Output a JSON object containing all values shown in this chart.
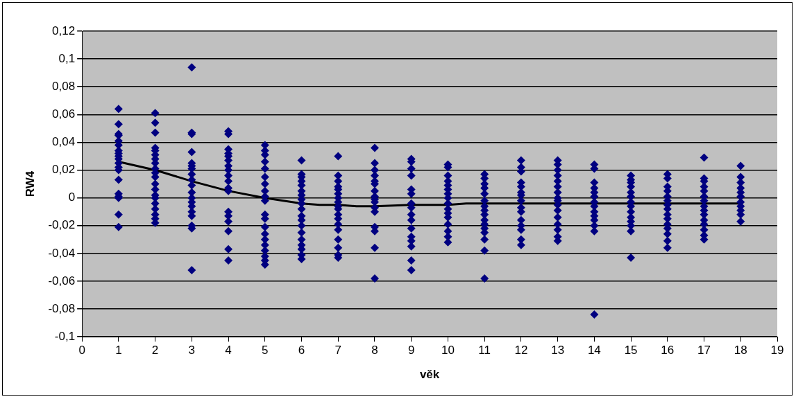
{
  "chart_data": {
    "type": "scatter",
    "xlabel": "věk",
    "ylabel": "RW4",
    "xlim": [
      0,
      19
    ],
    "xticks": [
      0,
      1,
      2,
      3,
      4,
      5,
      6,
      7,
      8,
      9,
      10,
      11,
      12,
      13,
      14,
      15,
      16,
      17,
      18,
      19
    ],
    "ylim": [
      -0.1,
      0.12
    ],
    "yticks": [
      {
        "value": -0.1,
        "label": "-0,1"
      },
      {
        "value": -0.08,
        "label": "-0,08"
      },
      {
        "value": -0.06,
        "label": "-0,06"
      },
      {
        "value": -0.04,
        "label": "-0,04"
      },
      {
        "value": -0.02,
        "label": "-0,02"
      },
      {
        "value": 0,
        "label": "0"
      },
      {
        "value": 0.02,
        "label": "0,02"
      },
      {
        "value": 0.04,
        "label": "0,04"
      },
      {
        "value": 0.06,
        "label": "0,06"
      },
      {
        "value": 0.08,
        "label": "0,08"
      },
      {
        "value": 0.1,
        "label": "0,1"
      },
      {
        "value": 0.12,
        "label": "0,12"
      }
    ],
    "grid": "y",
    "legend": false,
    "marker": "diamond",
    "series": [
      {
        "color": "#000080",
        "x": [
          1,
          1,
          1,
          1,
          1,
          1,
          1,
          1,
          1,
          1,
          1,
          1,
          1,
          1,
          1,
          1,
          1,
          1,
          1
        ],
        "values": [
          0.064,
          0.053,
          0.046,
          0.045,
          0.041,
          0.038,
          0.034,
          0.032,
          0.03,
          0.028,
          0.025,
          0.022,
          0.02,
          0.013,
          0.003,
          0.001,
          0,
          -0.012,
          -0.021
        ]
      },
      {
        "color": "#000080",
        "x": [
          2,
          2,
          2,
          2,
          2,
          2,
          2,
          2,
          2,
          2,
          2,
          2,
          2,
          2,
          2,
          2,
          2,
          2,
          2,
          2
        ],
        "values": [
          0.061,
          0.054,
          0.047,
          0.036,
          0.034,
          0.031,
          0.028,
          0.025,
          0.021,
          0.018,
          0.015,
          0.01,
          0.006,
          0.002,
          0,
          -0.004,
          -0.008,
          -0.012,
          -0.015,
          -0.018
        ]
      },
      {
        "color": "#000080",
        "x": [
          3,
          3,
          3,
          3,
          3,
          3,
          3,
          3,
          3,
          3,
          3,
          3,
          3,
          3,
          3,
          3,
          3,
          3,
          3
        ],
        "values": [
          0.094,
          0.047,
          0.046,
          0.033,
          0.025,
          0.023,
          0.021,
          0.017,
          0.013,
          0.009,
          0.004,
          0,
          -0.003,
          -0.006,
          -0.01,
          -0.013,
          -0.02,
          -0.022,
          -0.052
        ]
      },
      {
        "color": "#000080",
        "x": [
          4,
          4,
          4,
          4,
          4,
          4,
          4,
          4,
          4,
          4,
          4,
          4,
          4,
          4,
          4,
          4,
          4,
          4
        ],
        "values": [
          0.048,
          0.046,
          0.035,
          0.032,
          0.03,
          0.027,
          0.023,
          0.02,
          0.016,
          0.012,
          0.007,
          0.005,
          -0.01,
          -0.013,
          -0.017,
          -0.024,
          -0.037,
          -0.045
        ]
      },
      {
        "color": "#000080",
        "x": [
          5,
          5,
          5,
          5,
          5,
          5,
          5,
          5,
          5,
          5,
          5,
          5,
          5,
          5,
          5,
          5,
          5,
          5,
          5,
          5
        ],
        "values": [
          0.038,
          0.034,
          0.031,
          0.026,
          0.021,
          0.015,
          0.01,
          0.005,
          0.001,
          -0.002,
          -0.012,
          -0.015,
          -0.021,
          -0.026,
          -0.03,
          -0.034,
          -0.038,
          -0.042,
          -0.045,
          -0.048
        ]
      },
      {
        "color": "#000080",
        "x": [
          6,
          6,
          6,
          6,
          6,
          6,
          6,
          6,
          6,
          6,
          6,
          6,
          6,
          6,
          6,
          6,
          6,
          6,
          6
        ],
        "values": [
          0.027,
          0.017,
          0.015,
          0.012,
          0.009,
          0.005,
          0.002,
          -0.001,
          -0.004,
          -0.008,
          -0.013,
          -0.016,
          -0.02,
          -0.025,
          -0.03,
          -0.034,
          -0.037,
          -0.041,
          -0.044
        ]
      },
      {
        "color": "#000080",
        "x": [
          7,
          7,
          7,
          7,
          7,
          7,
          7,
          7,
          7,
          7,
          7,
          7,
          7,
          7,
          7,
          7,
          7,
          7
        ],
        "values": [
          0.03,
          0.016,
          0.012,
          0.008,
          0.006,
          0.003,
          0,
          -0.003,
          -0.006,
          -0.008,
          -0.012,
          -0.015,
          -0.019,
          -0.023,
          -0.03,
          -0.036,
          -0.041,
          -0.043
        ]
      },
      {
        "color": "#000080",
        "x": [
          8,
          8,
          8,
          8,
          8,
          8,
          8,
          8,
          8,
          8,
          8,
          8,
          8,
          8,
          8,
          8
        ],
        "values": [
          0.036,
          0.025,
          0.02,
          0.016,
          0.012,
          0.01,
          0.005,
          0.001,
          -0.001,
          -0.003,
          -0.007,
          -0.01,
          -0.021,
          -0.024,
          -0.036,
          -0.058
        ]
      },
      {
        "color": "#000080",
        "x": [
          9,
          9,
          9,
          9,
          9,
          9,
          9,
          9,
          9,
          9,
          9,
          9,
          9,
          9,
          9,
          9
        ],
        "values": [
          0.028,
          0.026,
          0.021,
          0.016,
          0.006,
          0.003,
          -0.004,
          -0.007,
          -0.012,
          -0.016,
          -0.022,
          -0.028,
          -0.031,
          -0.035,
          -0.045,
          -0.052
        ]
      },
      {
        "color": "#000080",
        "x": [
          10,
          10,
          10,
          10,
          10,
          10,
          10,
          10,
          10,
          10,
          10,
          10,
          10,
          10,
          10,
          10
        ],
        "values": [
          0.024,
          0.022,
          0.016,
          0.012,
          0.009,
          0.006,
          0.003,
          0,
          -0.004,
          -0.008,
          -0.011,
          -0.014,
          -0.019,
          -0.024,
          -0.028,
          -0.032
        ]
      },
      {
        "color": "#000080",
        "x": [
          11,
          11,
          11,
          11,
          11,
          11,
          11,
          11,
          11,
          11,
          11,
          11,
          11,
          11,
          11,
          11
        ],
        "values": [
          0.017,
          0.014,
          0.01,
          0.007,
          0.003,
          -0.002,
          -0.006,
          -0.009,
          -0.012,
          -0.016,
          -0.019,
          -0.022,
          -0.025,
          -0.03,
          -0.038,
          -0.058
        ]
      },
      {
        "color": "#000080",
        "x": [
          12,
          12,
          12,
          12,
          12,
          12,
          12,
          12,
          12,
          12,
          12,
          12,
          12,
          12,
          12
        ],
        "values": [
          0.027,
          0.022,
          0.019,
          0.011,
          0.008,
          0.004,
          0.002,
          -0.002,
          -0.007,
          -0.01,
          -0.016,
          -0.02,
          -0.023,
          -0.03,
          -0.034
        ]
      },
      {
        "color": "#000080",
        "x": [
          13,
          13,
          13,
          13,
          13,
          13,
          13,
          13,
          13,
          13,
          13,
          13,
          13,
          13,
          13,
          13
        ],
        "values": [
          0.027,
          0.024,
          0.02,
          0.016,
          0.012,
          0.008,
          0.004,
          0,
          -0.002,
          -0.005,
          -0.009,
          -0.014,
          -0.019,
          -0.023,
          -0.028,
          -0.031
        ]
      },
      {
        "color": "#000080",
        "x": [
          14,
          14,
          14,
          14,
          14,
          14,
          14,
          14,
          14,
          14,
          14,
          14,
          14,
          14
        ],
        "values": [
          0.024,
          0.021,
          0.011,
          0.007,
          0.004,
          0.001,
          -0.003,
          -0.006,
          -0.01,
          -0.013,
          -0.016,
          -0.02,
          -0.024,
          -0.084
        ]
      },
      {
        "color": "#000080",
        "x": [
          15,
          15,
          15,
          15,
          15,
          15,
          15,
          15,
          15,
          15,
          15,
          15,
          15,
          15
        ],
        "values": [
          0.016,
          0.013,
          0.011,
          0.008,
          0.004,
          0.001,
          -0.003,
          -0.006,
          -0.01,
          -0.014,
          -0.017,
          -0.02,
          -0.024,
          -0.043
        ]
      },
      {
        "color": "#000080",
        "x": [
          16,
          16,
          16,
          16,
          16,
          16,
          16,
          16,
          16,
          16,
          16,
          16,
          16,
          16,
          16
        ],
        "values": [
          0.017,
          0.014,
          0.008,
          0.005,
          0.001,
          -0.002,
          -0.005,
          -0.008,
          -0.012,
          -0.015,
          -0.019,
          -0.022,
          -0.026,
          -0.031,
          -0.036
        ]
      },
      {
        "color": "#000080",
        "x": [
          17,
          17,
          17,
          17,
          17,
          17,
          17,
          17,
          17,
          17,
          17,
          17,
          17,
          17,
          17
        ],
        "values": [
          0.029,
          0.014,
          0.012,
          0.008,
          0.005,
          0.001,
          -0.002,
          -0.006,
          -0.009,
          -0.012,
          -0.016,
          -0.019,
          -0.023,
          -0.027,
          -0.03
        ]
      },
      {
        "color": "#000080",
        "x": [
          18,
          18,
          18,
          18,
          18,
          18,
          18,
          18,
          18,
          18,
          18
        ],
        "values": [
          0.023,
          0.015,
          0.011,
          0.007,
          0.004,
          0.001,
          -0.003,
          -0.006,
          -0.009,
          -0.012,
          -0.017
        ]
      },
      {
        "type": "line",
        "color": "#000000",
        "marker": "none",
        "x": [
          1,
          2,
          3,
          4,
          5,
          6,
          6.5,
          7,
          7.5,
          8,
          9,
          10,
          10.5,
          11,
          12,
          13,
          14,
          15,
          16,
          17,
          18
        ],
        "values": [
          0.026,
          0.02,
          0.012,
          0.005,
          0,
          -0.004,
          -0.005,
          -0.005,
          -0.006,
          -0.006,
          -0.005,
          -0.005,
          -0.004,
          -0.004,
          -0.004,
          -0.004,
          -0.004,
          -0.004,
          -0.004,
          -0.004,
          -0.004
        ]
      }
    ]
  }
}
